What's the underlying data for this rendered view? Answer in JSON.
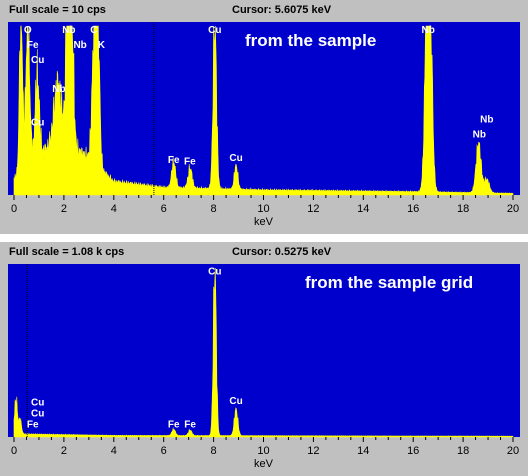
{
  "panels": [
    {
      "full_scale": "Full scale = 10  cps",
      "cursor": "Cursor:  5.6075 keV",
      "annotation": "from the sample"
    },
    {
      "full_scale": "Full scale = 1.08 k cps",
      "cursor": "Cursor:  0.5275 keV",
      "annotation": "from the sample grid"
    }
  ],
  "chart_data": [
    {
      "type": "area",
      "title": "from the sample",
      "xlabel": "keV",
      "ylabel": "",
      "xlim": [
        0,
        20
      ],
      "ylim": [
        0,
        10
      ],
      "x_ticks": [
        "0",
        "2",
        "4",
        "6",
        "8",
        "10",
        "12",
        "14",
        "16",
        "18",
        "20"
      ],
      "cursor_kev": 5.6075,
      "background_color": "#0000cc",
      "fill_color": "#ffff00",
      "peaks": [
        {
          "energy": 0.28,
          "height": 10,
          "width": 0.06
        },
        {
          "energy": 0.55,
          "height": 8.3,
          "width": 0.08
        },
        {
          "energy": 0.93,
          "height": 4.8,
          "width": 0.08
        },
        {
          "energy": 1.75,
          "height": 3.5,
          "width": 0.15
        },
        {
          "energy": 2.17,
          "height": 10,
          "width": 0.08
        },
        {
          "energy": 2.3,
          "height": 8.5,
          "width": 0.08
        },
        {
          "energy": 3.22,
          "height": 7.0,
          "width": 0.09
        },
        {
          "energy": 3.34,
          "height": 9.8,
          "width": 0.08
        },
        {
          "energy": 6.4,
          "height": 1.5,
          "width": 0.08
        },
        {
          "energy": 7.06,
          "height": 1.2,
          "width": 0.08
        },
        {
          "energy": 8.05,
          "height": 9.8,
          "width": 0.07
        },
        {
          "energy": 8.9,
          "height": 1.4,
          "width": 0.07
        },
        {
          "energy": 16.58,
          "height": 10,
          "width": 0.1
        },
        {
          "energy": 16.65,
          "height": 10,
          "width": 0.1
        },
        {
          "energy": 18.62,
          "height": 2.9,
          "width": 0.1
        },
        {
          "energy": 18.95,
          "height": 0.8,
          "width": 0.1
        }
      ],
      "background_level": [
        {
          "energy": 0.0,
          "height": 1.0
        },
        {
          "energy": 1.0,
          "height": 2.5
        },
        {
          "energy": 2.0,
          "height": 3.2
        },
        {
          "energy": 3.0,
          "height": 2.2
        },
        {
          "energy": 4.0,
          "height": 0.8
        },
        {
          "energy": 6.0,
          "height": 0.45
        },
        {
          "energy": 10.0,
          "height": 0.3
        },
        {
          "energy": 16.0,
          "height": 0.2
        },
        {
          "energy": 20.0,
          "height": 0.1
        }
      ],
      "labels": [
        {
          "text": "O",
          "energy": 0.55,
          "height": 9.6
        },
        {
          "text": "Fe",
          "energy": 0.75,
          "height": 8.7
        },
        {
          "text": "Cu",
          "energy": 0.95,
          "height": 7.8
        },
        {
          "text": "Nb",
          "energy": 2.2,
          "height": 9.6
        },
        {
          "text": "Nb",
          "energy": 2.65,
          "height": 8.7
        },
        {
          "text": "Nb",
          "energy": 1.8,
          "height": 6.1
        },
        {
          "text": "Cu",
          "energy": 0.95,
          "height": 4.1
        },
        {
          "text": "C",
          "energy": 3.2,
          "height": 9.6
        },
        {
          "text": "K",
          "energy": 3.5,
          "height": 8.7
        },
        {
          "text": "Cu",
          "energy": 8.05,
          "height": 9.6
        },
        {
          "text": "Fe",
          "energy": 6.4,
          "height": 1.9
        },
        {
          "text": "Fe",
          "energy": 7.05,
          "height": 1.8
        },
        {
          "text": "Cu",
          "energy": 8.9,
          "height": 2.0
        },
        {
          "text": "Nb",
          "energy": 16.6,
          "height": 9.6
        },
        {
          "text": "Nb",
          "energy": 18.95,
          "height": 4.3
        },
        {
          "text": "Nb",
          "energy": 18.65,
          "height": 3.4
        }
      ]
    },
    {
      "type": "area",
      "title": "from the sample grid",
      "xlabel": "keV",
      "ylabel": "",
      "xlim": [
        0,
        20
      ],
      "ylim": [
        0,
        1080
      ],
      "x_ticks": [
        "0",
        "2",
        "4",
        "6",
        "8",
        "10",
        "12",
        "14",
        "16",
        "18",
        "20"
      ],
      "cursor_kev": 0.5275,
      "background_color": "#0000cc",
      "fill_color": "#ffff00",
      "peaks": [
        {
          "energy": 0.08,
          "height": 220,
          "width": 0.06
        },
        {
          "energy": 0.25,
          "height": 90,
          "width": 0.05
        },
        {
          "energy": 6.4,
          "height": 40,
          "width": 0.07
        },
        {
          "energy": 7.06,
          "height": 35,
          "width": 0.07
        },
        {
          "energy": 8.05,
          "height": 1080,
          "width": 0.06
        },
        {
          "energy": 8.9,
          "height": 170,
          "width": 0.07
        }
      ],
      "background_level": [
        {
          "energy": 0.0,
          "height": 20
        },
        {
          "energy": 4.0,
          "height": 10
        },
        {
          "energy": 20.0,
          "height": 5
        }
      ],
      "labels": [
        {
          "text": "Cu",
          "energy": 8.05,
          "height": 1040
        },
        {
          "text": "Cu",
          "energy": 8.9,
          "height": 210
        },
        {
          "text": "Fe",
          "energy": 6.4,
          "height": 60
        },
        {
          "text": "Fe",
          "energy": 7.06,
          "height": 60
        },
        {
          "text": "Cu",
          "energy": 0.95,
          "height": 200
        },
        {
          "text": "Cu",
          "energy": 0.95,
          "height": 130
        },
        {
          "text": "Fe",
          "energy": 0.75,
          "height": 60
        }
      ]
    }
  ]
}
